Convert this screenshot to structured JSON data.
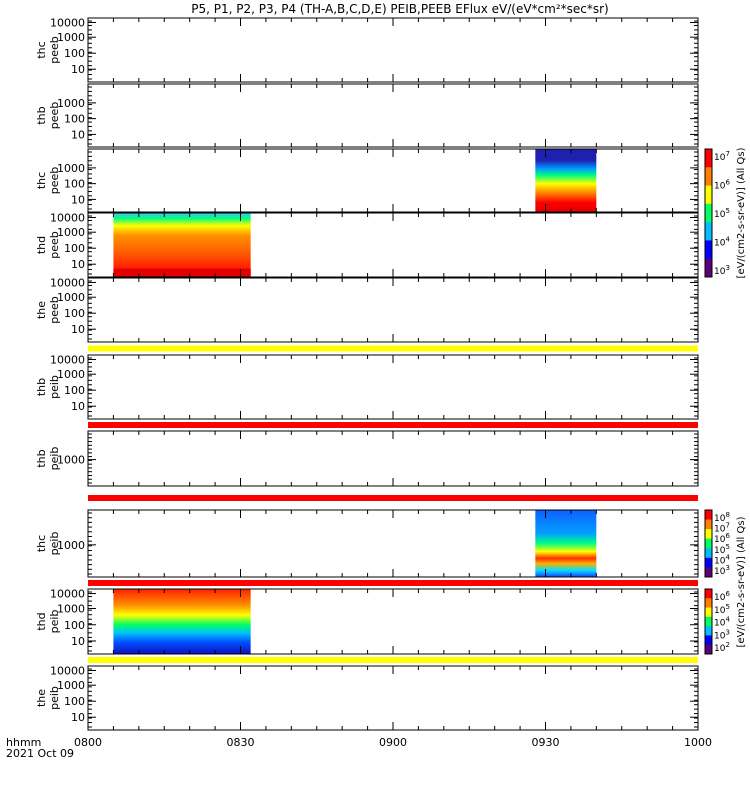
{
  "chart_data": {
    "type": "heatmap",
    "title": "P5, P1, P2, P3, P4 (TH-A,B,C,D,E) PEIB,PEEB EFlux eV/(eV*cm²*sec*sr)",
    "x_label_line1": "hhmm",
    "x_label_line2": "2021 Oct 09",
    "x_ticks": [
      "0800",
      "0830",
      "0900",
      "0930",
      "1000"
    ],
    "x_range_minutes": [
      480,
      600
    ],
    "colorbars": [
      {
        "label": "[eV/(cm2-s-sr-eV)] (All Qs)",
        "tick_exps": [
          "7",
          "6",
          "5",
          "4",
          "3"
        ],
        "applies_to": "peeb"
      },
      {
        "label": "[eV/(cm2-s-sr-eV)] (All Qs)",
        "tick_exps": [
          "8",
          "7",
          "6",
          "5",
          "4",
          "3"
        ],
        "applies_to": "peib (thc)"
      },
      {
        "label": "[eV/(cm2-s-sr-eV)] (All Qs)",
        "tick_exps": [
          "6",
          "5",
          "4",
          "3",
          "2"
        ],
        "applies_to": "peib (thd)"
      }
    ],
    "panels": [
      {
        "probe": "thc",
        "product": "peeb",
        "y_ticks": [
          "10000",
          "1000",
          "100",
          "10"
        ],
        "data_intervals": []
      },
      {
        "probe": "thb",
        "product": "peeb",
        "y_ticks": [
          "1000",
          "100",
          "10"
        ],
        "data_intervals": []
      },
      {
        "probe": "thc",
        "product": "peeb",
        "y_ticks": [
          "1000",
          "100",
          "10"
        ],
        "data_intervals": [
          {
            "start": "09:28",
            "end": "09:40"
          }
        ]
      },
      {
        "probe": "thd",
        "product": "peeb",
        "y_ticks": [
          "10000",
          "1000",
          "100",
          "10"
        ],
        "data_intervals": [
          {
            "start": "08:05",
            "end": "08:32"
          }
        ]
      },
      {
        "probe": "the",
        "product": "peeb",
        "y_ticks": [
          "10000",
          "1000",
          "100",
          "10"
        ],
        "data_intervals": []
      },
      {
        "probe": "thb",
        "product": "peib",
        "y_ticks": [
          "10000",
          "1000",
          "100",
          "10"
        ],
        "data_intervals": []
      },
      {
        "probe": "thb",
        "product": "peib",
        "y_ticks": [
          "1000"
        ],
        "data_intervals": []
      },
      {
        "probe": "thc",
        "product": "peib",
        "y_ticks": [
          "1000"
        ],
        "data_intervals": [
          {
            "start": "09:28",
            "end": "09:40"
          }
        ]
      },
      {
        "probe": "thd",
        "product": "peib",
        "y_ticks": [
          "10000",
          "1000",
          "100",
          "10"
        ],
        "data_intervals": [
          {
            "start": "08:05",
            "end": "08:32"
          }
        ]
      },
      {
        "probe": "the",
        "product": "peib",
        "y_ticks": [
          "10000",
          "1000",
          "100",
          "10"
        ],
        "data_intervals": []
      }
    ],
    "separator_bands": [
      {
        "after_panel": 4,
        "color": "#ffff00"
      },
      {
        "after_panel": 5,
        "color": "#ff0000"
      },
      {
        "after_panel": 6,
        "color": "#ff0000"
      },
      {
        "after_panel": 7,
        "color": "#ff0000"
      },
      {
        "after_panel": 8,
        "color": "#ffff00"
      }
    ]
  }
}
